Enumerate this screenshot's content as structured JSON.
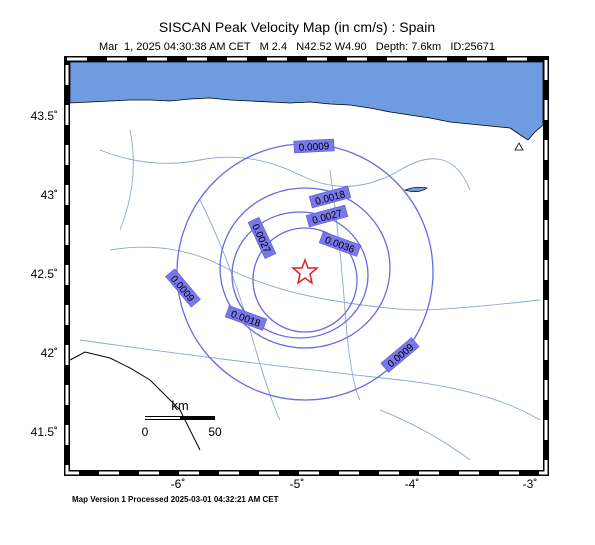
{
  "title": "SISCAN Peak Velocity Map (in cm/s) : Spain",
  "subtitle": "Mar  1, 2025 04:30:38 AM CET   M 2.4   N42.52 W4.90   Depth: 7.6km   ID:25671",
  "lat_labels": [
    "43.5˚",
    "43˚",
    "42.5˚",
    "42˚",
    "41.5˚"
  ],
  "lon_labels": [
    "-6˚",
    "-5˚",
    "-4˚",
    "-3˚"
  ],
  "contour_labels": [
    "0.0009",
    "0.0018",
    "0.0027",
    "0.0036",
    "0.0027",
    "0.0018",
    "0.0009",
    "0.0009"
  ],
  "scale": {
    "unit": "km",
    "start": "0",
    "end": "50"
  },
  "footer": "Map Version 1 Processed 2025-03-01 04:32:21 AM CET"
}
